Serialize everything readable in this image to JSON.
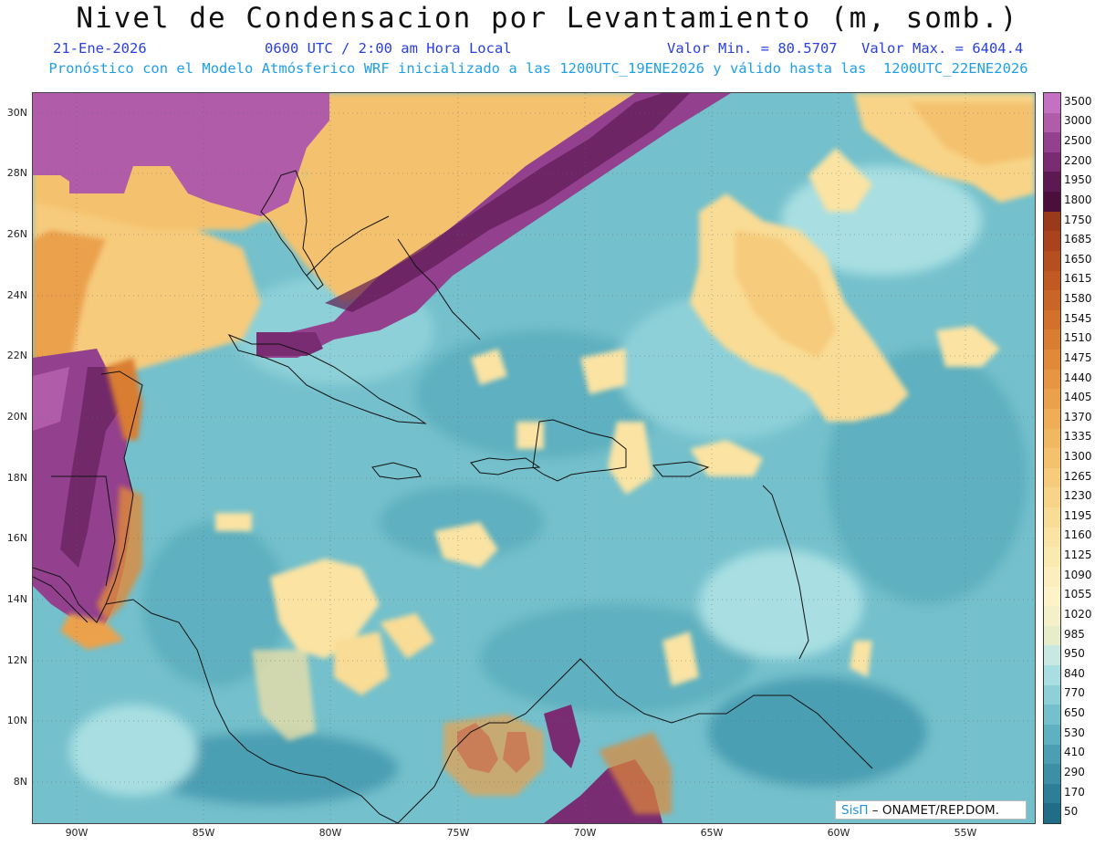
{
  "header": {
    "title": "Nivel de Condensacion por Levantamiento (m, somb.)",
    "date": "21-Ene-2026",
    "time": "0600 UTC / 2:00 am Hora Local",
    "min": "Valor Min. = 80.5707",
    "max": "Valor Max. = 6404.4",
    "forecast": "Pronóstico con el Modelo Atmósferico WRF inicializado a las 1200UTC_19ENE2026 y válido hasta las  1200UTC_22ENE2026"
  },
  "axes": {
    "lat_labels": [
      "30N",
      "28N",
      "26N",
      "24N",
      "22N",
      "20N",
      "18N",
      "16N",
      "14N",
      "12N",
      "10N",
      "8N"
    ],
    "lon_labels": [
      "90W",
      "85W",
      "80W",
      "75W",
      "70W",
      "65W",
      "60W",
      "55W"
    ]
  },
  "legend": {
    "labels": [
      "3500",
      "3000",
      "2500",
      "2200",
      "1950",
      "1800",
      "1750",
      "1685",
      "1650",
      "1615",
      "1580",
      "1545",
      "1510",
      "1475",
      "1440",
      "1405",
      "1370",
      "1335",
      "1300",
      "1265",
      "1230",
      "1195",
      "1160",
      "1125",
      "1090",
      "1055",
      "1020",
      "985",
      "950",
      "840",
      "770",
      "650",
      "530",
      "410",
      "290",
      "170",
      "50"
    ],
    "colors": [
      "#c471c2",
      "#b05ca8",
      "#93408f",
      "#7a2c72",
      "#5c1a52",
      "#4a0f3d",
      "#9b3a1a",
      "#a8431c",
      "#b64f20",
      "#c05a22",
      "#c96526",
      "#d1712b",
      "#d97d32",
      "#e08939",
      "#e69542",
      "#eba14b",
      "#eead56",
      "#f1b862",
      "#f4c26e",
      "#f6cb7b",
      "#f8d488",
      "#f9dc95",
      "#fae3a3",
      "#fbeab0",
      "#fcefbd",
      "#fcf3c9",
      "#f4f1c8",
      "#e6edc8",
      "#c7e8e3",
      "#a9dfe2",
      "#8dd0d8",
      "#74c0cc",
      "#5fb0c0",
      "#4c9fb2",
      "#3d8fa5",
      "#2e7e97",
      "#1f6d88"
    ],
    "colors_meaning": "Colour scale for LCL height in meters"
  },
  "credit": {
    "brand": "SisΠ",
    "org": " – ONAMET/REP.DOM."
  }
}
